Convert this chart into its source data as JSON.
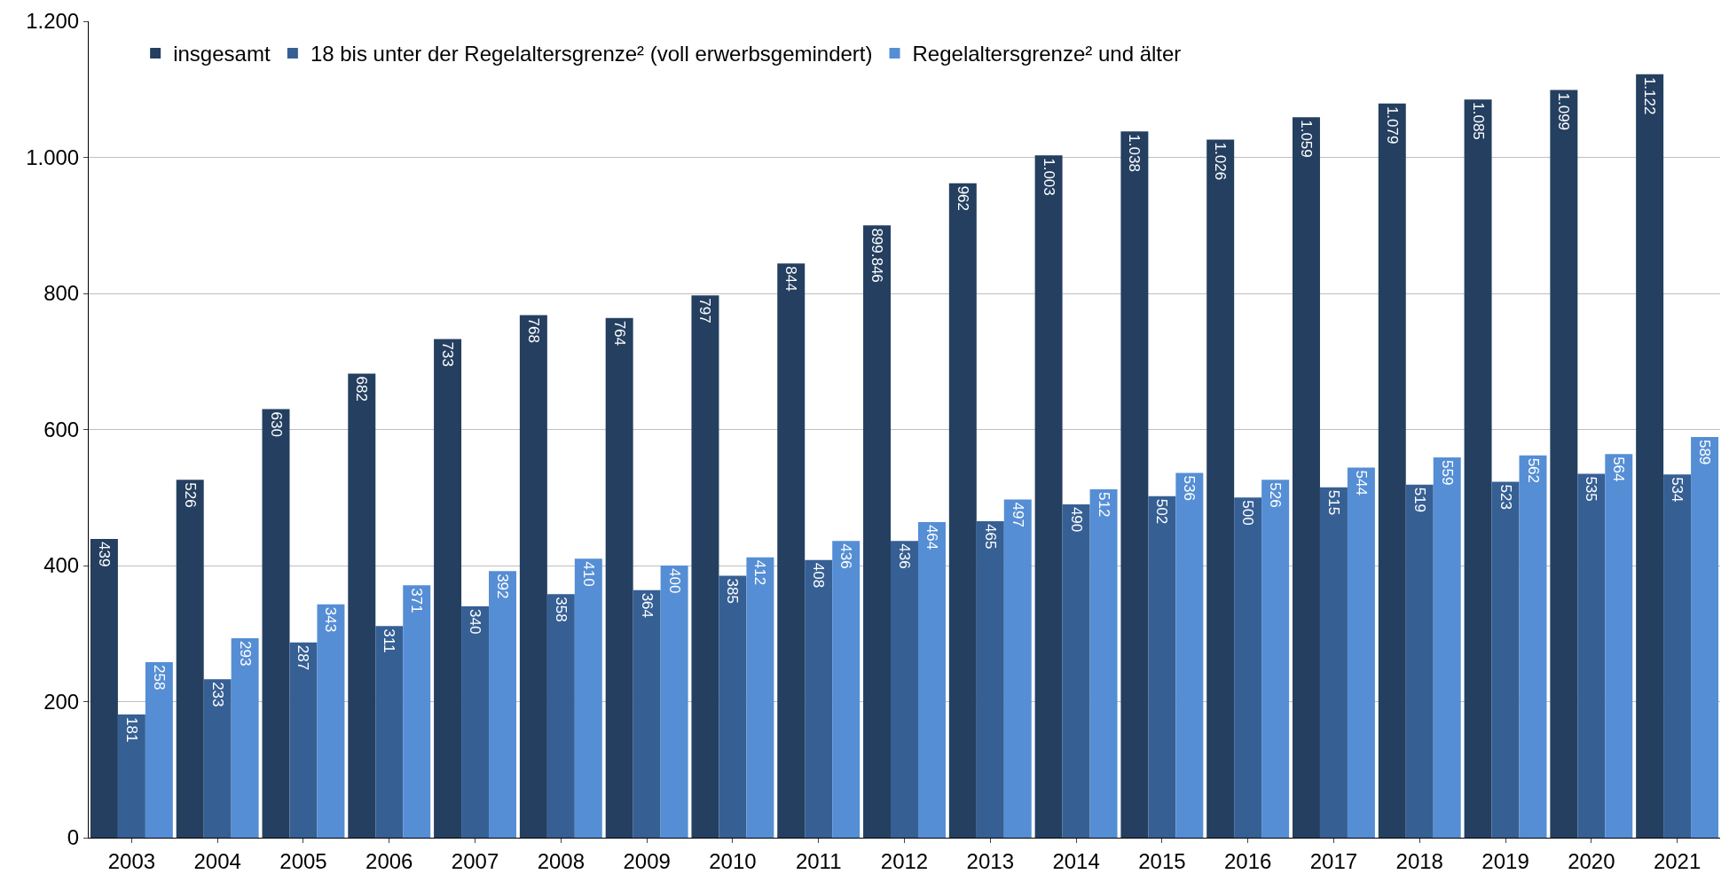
{
  "chart_data": {
    "type": "bar",
    "categories": [
      "2003",
      "2004",
      "2005",
      "2006",
      "2007",
      "2008",
      "2009",
      "2010",
      "2011",
      "2012",
      "2013",
      "2014",
      "2015",
      "2016",
      "2017",
      "2018",
      "2019",
      "2020",
      "2021"
    ],
    "series": [
      {
        "name": "insgesamt",
        "color": "#243f60",
        "values": [
          439,
          526,
          630,
          682,
          733,
          768,
          764,
          797,
          844,
          899.846,
          962,
          1003,
          1038,
          1026,
          1059,
          1079,
          1085,
          1099,
          1122
        ],
        "value_labels": [
          "439",
          "526",
          "630",
          "682",
          "733",
          "768",
          "764",
          "797",
          "844",
          "899.846",
          "962",
          "1.003",
          "1.038",
          "1.026",
          "1.059",
          "1.079",
          "1.085",
          "1.099",
          "1.122"
        ]
      },
      {
        "name": "18 bis unter der Regelaltersgrenze² (voll erwerbsgemindert)",
        "color": "#365f94",
        "values": [
          181,
          233,
          287,
          311,
          340,
          358,
          364,
          385,
          408,
          436,
          465,
          490,
          502,
          500,
          515,
          519,
          523,
          535,
          534
        ],
        "value_labels": [
          "181",
          "233",
          "287",
          "311",
          "340",
          "358",
          "364",
          "385",
          "408",
          "436",
          "465",
          "490",
          "502",
          "500",
          "515",
          "519",
          "523",
          "535",
          "534"
        ]
      },
      {
        "name": "Regelaltersgrenze² und älter",
        "color": "#558ed5",
        "values": [
          258,
          293,
          343,
          371,
          392,
          410,
          400,
          412,
          436,
          464,
          497,
          512,
          536,
          526,
          544,
          559,
          562,
          564,
          589
        ],
        "value_labels": [
          "258",
          "293",
          "343",
          "371",
          "392",
          "410",
          "400",
          "412",
          "436",
          "464",
          "497",
          "512",
          "536",
          "526",
          "544",
          "559",
          "562",
          "564",
          "589"
        ]
      }
    ],
    "ylim": [
      0,
      1200
    ],
    "yticks": [
      0,
      200,
      400,
      600,
      800,
      {
        "value": 1000,
        "label": "1.000"
      },
      {
        "value": 1200,
        "label": "1.200"
      }
    ],
    "grid": "y",
    "legend": "top left"
  }
}
